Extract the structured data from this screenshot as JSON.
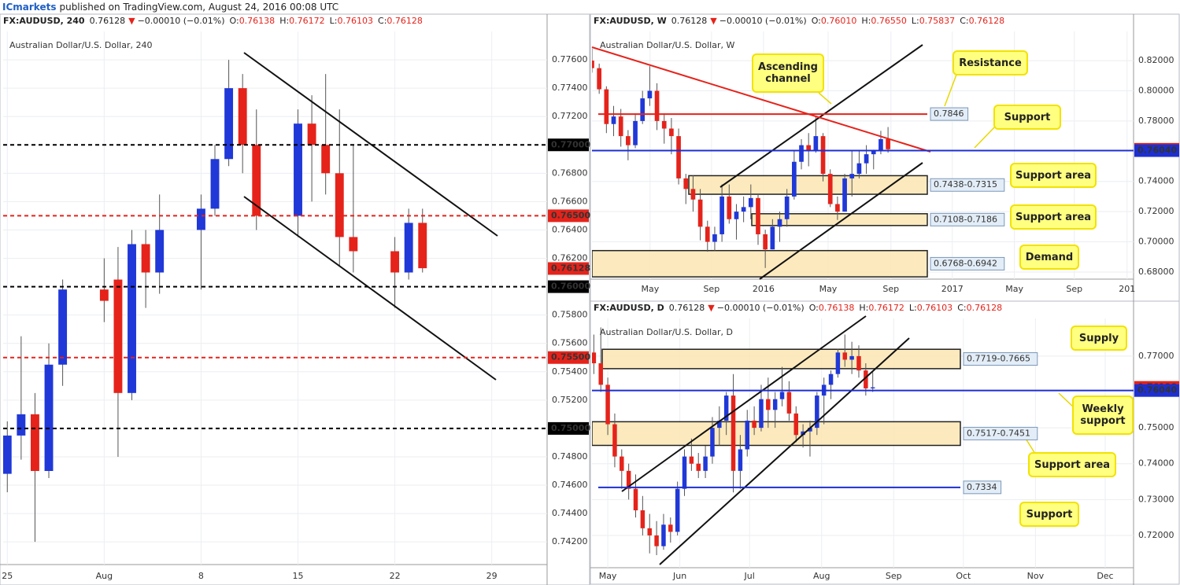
{
  "banner": {
    "publisher": "ICmarkets",
    "text": "published on TradingView.com, August 24, 2016 00:08 UTC"
  },
  "chart_data": [
    {
      "type": "candlestick",
      "header": {
        "symbol": "FX:AUDUSD, 240",
        "last": "0.76128",
        "arrow": "▼",
        "change": "−0.00010 (−0.01%)",
        "ohlc": [
          [
            "O:",
            "0.76138"
          ],
          [
            "H:",
            "0.76172"
          ],
          [
            "L:",
            "0.76103"
          ],
          [
            "C:",
            "0.76128"
          ]
        ]
      },
      "title": "Australian Dollar/U.S. Dollar, 240",
      "up_color": "#2038d8",
      "down_color": "#e5231b",
      "grid": true,
      "x": [
        0,
        1,
        2,
        3,
        4,
        7,
        8,
        9,
        10,
        11,
        14,
        15,
        16,
        17,
        18,
        21,
        22,
        23,
        24,
        25,
        28,
        29,
        30
      ],
      "open": [
        0.7468,
        0.7495,
        0.751,
        0.747,
        0.7545,
        0.7598,
        0.7605,
        0.7525,
        0.763,
        0.761,
        0.764,
        0.7655,
        0.769,
        0.774,
        0.77,
        0.765,
        0.7715,
        0.77,
        0.768,
        0.7635,
        0.7625,
        0.761,
        0.7645
      ],
      "high": [
        0.7505,
        0.7565,
        0.7525,
        0.756,
        0.7605,
        0.762,
        0.7628,
        0.764,
        0.764,
        0.7665,
        0.7665,
        0.77,
        0.776,
        0.775,
        0.7725,
        0.7725,
        0.7735,
        0.775,
        0.7725,
        0.77,
        0.7635,
        0.7655,
        0.7655
      ],
      "low": [
        0.7455,
        0.7478,
        0.742,
        0.7465,
        0.753,
        0.7575,
        0.748,
        0.752,
        0.7585,
        0.7595,
        0.7598,
        0.765,
        0.7685,
        0.768,
        0.764,
        0.7635,
        0.766,
        0.7665,
        0.7615,
        0.761,
        0.7585,
        0.7605,
        0.761
      ],
      "close": [
        0.7495,
        0.751,
        0.747,
        0.7545,
        0.7598,
        0.759,
        0.7525,
        0.763,
        0.761,
        0.764,
        0.7655,
        0.769,
        0.774,
        0.77,
        0.765,
        0.7715,
        0.77,
        0.768,
        0.7635,
        0.7625,
        0.761,
        0.7645,
        0.7613
      ],
      "xlim": [
        -0.3,
        39
      ],
      "ylim": [
        0.7404,
        0.778
      ],
      "xticks": [
        {
          "value": 0,
          "label": "25"
        },
        {
          "value": 7,
          "label": "Aug"
        },
        {
          "value": 14,
          "label": "8"
        },
        {
          "value": 21,
          "label": "15"
        },
        {
          "value": 28,
          "label": "22"
        },
        {
          "value": 35,
          "label": "29"
        }
      ],
      "yticks": [
        {
          "value": 0.776,
          "label": "0.77600"
        },
        {
          "value": 0.774,
          "label": "0.77400"
        },
        {
          "value": 0.772,
          "label": "0.77200"
        },
        {
          "value": 0.768,
          "label": "0.76800"
        },
        {
          "value": 0.766,
          "label": "0.76600"
        },
        {
          "value": 0.764,
          "label": "0.76400"
        },
        {
          "value": 0.762,
          "label": "0.76200"
        },
        {
          "value": 0.758,
          "label": "0.75800"
        },
        {
          "value": 0.756,
          "label": "0.75600"
        },
        {
          "value": 0.754,
          "label": "0.75400"
        },
        {
          "value": 0.752,
          "label": "0.75200"
        },
        {
          "value": 0.748,
          "label": "0.74800"
        },
        {
          "value": 0.746,
          "label": "0.74600"
        },
        {
          "value": 0.744,
          "label": "0.74400"
        },
        {
          "value": 0.742,
          "label": "0.74200"
        }
      ],
      "levels": [
        {
          "value": 0.77,
          "label": "0.77000",
          "color": "#000000",
          "style": "dashed",
          "place": "axis"
        },
        {
          "value": 0.765,
          "label": "0.76500",
          "color": "#e5231b",
          "style": "dashed",
          "place": "axis"
        },
        {
          "value": 0.76128,
          "label": "0.76128",
          "color": "#e5231b",
          "style": "none",
          "place": "axis"
        },
        {
          "value": 0.76,
          "label": "0.76000",
          "color": "#000000",
          "style": "dashed",
          "place": "axis"
        },
        {
          "value": 0.755,
          "label": "0.75500",
          "color": "#e5231b",
          "style": "dashed",
          "place": "axis"
        },
        {
          "value": 0.75,
          "label": "0.75000",
          "color": "#000000",
          "style": "dashed",
          "place": "axis"
        }
      ],
      "zones": [],
      "callouts": []
    },
    {
      "type": "candlestick",
      "header": {
        "symbol": "FX:AUDUSD, W",
        "last": "0.76128",
        "arrow": "▼",
        "change": "−0.00010 (−0.01%)",
        "ohlc": [
          [
            "O:",
            "0.76010"
          ],
          [
            "H:",
            "0.76550"
          ],
          [
            "L:",
            "0.75837"
          ],
          [
            "C:",
            "0.76128"
          ]
        ]
      },
      "title": "Australian Dollar/U.S. Dollar, W",
      "up_color": "#2038d8",
      "down_color": "#e5231b",
      "grid": true,
      "x": [
        0,
        2,
        4,
        6,
        8,
        10,
        12,
        14,
        16,
        18,
        20,
        22,
        24,
        26,
        28,
        30,
        32,
        34,
        36,
        38,
        40,
        42,
        44,
        46,
        48,
        50,
        52,
        54,
        56,
        58,
        60,
        62,
        64,
        66,
        68,
        70,
        72,
        74,
        76,
        78,
        80,
        82
      ],
      "open": [
        0.82,
        0.815,
        0.801,
        0.778,
        0.783,
        0.77,
        0.764,
        0.78,
        0.795,
        0.8,
        0.78,
        0.775,
        0.77,
        0.742,
        0.735,
        0.728,
        0.71,
        0.7,
        0.705,
        0.73,
        0.715,
        0.72,
        0.723,
        0.729,
        0.705,
        0.695,
        0.71,
        0.715,
        0.73,
        0.753,
        0.764,
        0.76,
        0.77,
        0.745,
        0.725,
        0.72,
        0.742,
        0.745,
        0.752,
        0.758,
        0.76,
        0.768
      ],
      "high": [
        0.828,
        0.818,
        0.803,
        0.79,
        0.788,
        0.774,
        0.785,
        0.8,
        0.8163,
        0.805,
        0.785,
        0.782,
        0.775,
        0.745,
        0.744,
        0.735,
        0.714,
        0.71,
        0.738,
        0.738,
        0.725,
        0.73,
        0.738,
        0.732,
        0.708,
        0.715,
        0.72,
        0.735,
        0.76,
        0.768,
        0.772,
        0.7835,
        0.772,
        0.748,
        0.73,
        0.745,
        0.76,
        0.76,
        0.764,
        0.761,
        0.7735,
        0.776
      ],
      "low": [
        0.812,
        0.798,
        0.772,
        0.77,
        0.763,
        0.754,
        0.762,
        0.778,
        0.79,
        0.774,
        0.765,
        0.758,
        0.738,
        0.725,
        0.72,
        0.701,
        0.6935,
        0.694,
        0.7,
        0.712,
        0.7015,
        0.713,
        0.715,
        0.698,
        0.6827,
        0.695,
        0.7,
        0.71,
        0.728,
        0.748,
        0.75,
        0.759,
        0.74,
        0.723,
        0.7145,
        0.72,
        0.73,
        0.742,
        0.745,
        0.748,
        0.758,
        0.759
      ],
      "close": [
        0.815,
        0.801,
        0.778,
        0.783,
        0.77,
        0.764,
        0.78,
        0.795,
        0.8,
        0.78,
        0.775,
        0.77,
        0.742,
        0.735,
        0.728,
        0.71,
        0.7,
        0.705,
        0.73,
        0.715,
        0.72,
        0.723,
        0.729,
        0.705,
        0.695,
        0.71,
        0.715,
        0.73,
        0.753,
        0.764,
        0.76,
        0.77,
        0.745,
        0.725,
        0.72,
        0.742,
        0.745,
        0.752,
        0.758,
        0.76,
        0.768,
        0.7613
      ],
      "xlim": [
        0,
        150
      ],
      "ylim": [
        0.6753,
        0.8393
      ],
      "xticks": [
        {
          "value": 16.1,
          "label": "May"
        },
        {
          "value": 33.1,
          "label": "Sep"
        },
        {
          "value": 47.5,
          "label": "2016"
        },
        {
          "value": 65.4,
          "label": "May"
        },
        {
          "value": 82.8,
          "label": "Sep"
        },
        {
          "value": 99.8,
          "label": "2017"
        },
        {
          "value": 117,
          "label": "May"
        },
        {
          "value": 133.6,
          "label": "Sep"
        },
        {
          "value": 148.2,
          "label": "201"
        }
      ],
      "yticks": [
        {
          "value": 0.82,
          "label": "0.82000"
        },
        {
          "value": 0.8,
          "label": "0.80000"
        },
        {
          "value": 0.78,
          "label": "0.78000"
        },
        {
          "value": 0.74,
          "label": "0.74000"
        },
        {
          "value": 0.72,
          "label": "0.72000"
        },
        {
          "value": 0.7,
          "label": "0.70000"
        },
        {
          "value": 0.68,
          "label": "0.68000"
        }
      ],
      "levels": [
        {
          "value": 0.7846,
          "label": "0.7846",
          "color": "#e5231b",
          "style": "solid",
          "place": "box"
        },
        {
          "value": 0.76128,
          "label": "0.76128",
          "color": "#e5231b",
          "style": "none",
          "place": "axis"
        },
        {
          "value": 0.7604,
          "label": "0.76040",
          "color": "#1d2fd0",
          "style": "solid",
          "place": "axis"
        }
      ],
      "zones": [
        {
          "high": 0.7438,
          "low": 0.7315,
          "label": "0.7438-0.7315"
        },
        {
          "high": 0.7186,
          "low": 0.7108,
          "label": "0.7108-0.7186"
        },
        {
          "high": 0.6942,
          "low": 0.6768,
          "label": "0.6768-0.6942"
        }
      ],
      "callouts": [
        "Ascending channel",
        "Resistance",
        "Support",
        "Support area",
        "Support area",
        "Demand"
      ]
    },
    {
      "type": "candlestick",
      "header": {
        "symbol": "FX:AUDUSD, D",
        "last": "0.76128",
        "arrow": "▼",
        "change": "−0.00010 (−0.01%)",
        "ohlc": [
          [
            "O:",
            "0.76138"
          ],
          [
            "H:",
            "0.76172"
          ],
          [
            "L:",
            "0.76103"
          ],
          [
            "C:",
            "0.76128"
          ]
        ]
      },
      "title": "Australian Dollar/U.S. Dollar, D",
      "up_color": "#2038d8",
      "down_color": "#e5231b",
      "grid": true,
      "x": [
        -6,
        -3,
        0,
        3,
        6,
        9,
        12,
        15,
        18,
        21,
        24,
        27,
        30,
        33,
        36,
        39,
        42,
        45,
        48,
        51,
        54,
        57,
        60,
        63,
        66,
        69,
        72,
        75,
        78,
        81,
        84,
        87,
        90,
        93,
        96,
        99,
        102,
        105,
        108,
        111,
        114
      ],
      "open": [
        0.771,
        0.768,
        0.762,
        0.751,
        0.742,
        0.738,
        0.733,
        0.727,
        0.722,
        0.72,
        0.717,
        0.723,
        0.721,
        0.733,
        0.742,
        0.74,
        0.738,
        0.742,
        0.75,
        0.752,
        0.759,
        0.738,
        0.744,
        0.752,
        0.75,
        0.758,
        0.755,
        0.758,
        0.76,
        0.754,
        0.748,
        0.749,
        0.75,
        0.759,
        0.762,
        0.765,
        0.771,
        0.769,
        0.77,
        0.766,
        0.761
      ],
      "high": [
        0.776,
        0.778,
        0.764,
        0.754,
        0.744,
        0.74,
        0.737,
        0.731,
        0.726,
        0.724,
        0.726,
        0.725,
        0.735,
        0.744,
        0.747,
        0.743,
        0.745,
        0.753,
        0.756,
        0.76,
        0.765,
        0.748,
        0.755,
        0.756,
        0.762,
        0.764,
        0.76,
        0.767,
        0.763,
        0.756,
        0.751,
        0.752,
        0.76,
        0.764,
        0.766,
        0.772,
        0.776,
        0.774,
        0.773,
        0.768,
        0.7655
      ],
      "low": [
        0.765,
        0.76,
        0.748,
        0.739,
        0.733,
        0.73,
        0.725,
        0.72,
        0.715,
        0.7145,
        0.716,
        0.718,
        0.72,
        0.731,
        0.738,
        0.736,
        0.736,
        0.74,
        0.745,
        0.748,
        0.732,
        0.733,
        0.742,
        0.748,
        0.749,
        0.75,
        0.75,
        0.756,
        0.752,
        0.746,
        0.7445,
        0.742,
        0.748,
        0.751,
        0.758,
        0.764,
        0.767,
        0.765,
        0.764,
        0.759,
        0.76
      ],
      "close": [
        0.768,
        0.762,
        0.751,
        0.742,
        0.738,
        0.733,
        0.727,
        0.722,
        0.72,
        0.717,
        0.723,
        0.721,
        0.733,
        0.742,
        0.74,
        0.738,
        0.742,
        0.75,
        0.752,
        0.759,
        0.738,
        0.744,
        0.752,
        0.75,
        0.758,
        0.755,
        0.758,
        0.76,
        0.754,
        0.748,
        0.749,
        0.75,
        0.759,
        0.762,
        0.765,
        0.771,
        0.769,
        0.77,
        0.766,
        0.761,
        0.7613
      ],
      "xlim": [
        -6.8,
        226.2
      ],
      "ylim": [
        0.711,
        0.7805
      ],
      "xticks": [
        {
          "value": 0,
          "label": "May"
        },
        {
          "value": 31,
          "label": "Jun"
        },
        {
          "value": 61,
          "label": "Jul"
        },
        {
          "value": 92,
          "label": "Aug"
        },
        {
          "value": 123,
          "label": "Sep"
        },
        {
          "value": 153,
          "label": "Oct"
        },
        {
          "value": 184,
          "label": "Nov"
        },
        {
          "value": 214,
          "label": "Dec"
        }
      ],
      "yticks": [
        {
          "value": 0.77,
          "label": "0.77000"
        },
        {
          "value": 0.75,
          "label": "0.75000"
        },
        {
          "value": 0.74,
          "label": "0.74000"
        },
        {
          "value": 0.73,
          "label": "0.73000"
        },
        {
          "value": 0.72,
          "label": "0.72000"
        }
      ],
      "levels": [
        {
          "value": 0.76128,
          "label": "0.76128",
          "color": "#e5231b",
          "style": "none",
          "place": "axis"
        },
        {
          "value": 0.7604,
          "label": "0.76040",
          "color": "#1d2fd0",
          "style": "solid",
          "place": "axis"
        },
        {
          "value": 0.7334,
          "label": "0.7334",
          "color": "#1d2fd0",
          "style": "solid",
          "place": "box"
        }
      ],
      "zones": [
        {
          "high": 0.7719,
          "low": 0.7665,
          "label": "0.7719-0.7665"
        },
        {
          "high": 0.7517,
          "low": 0.7451,
          "label": "0.7517-0.7451"
        }
      ],
      "callouts": [
        "Supply",
        "Weekly support",
        "Support area",
        "Support"
      ]
    }
  ]
}
